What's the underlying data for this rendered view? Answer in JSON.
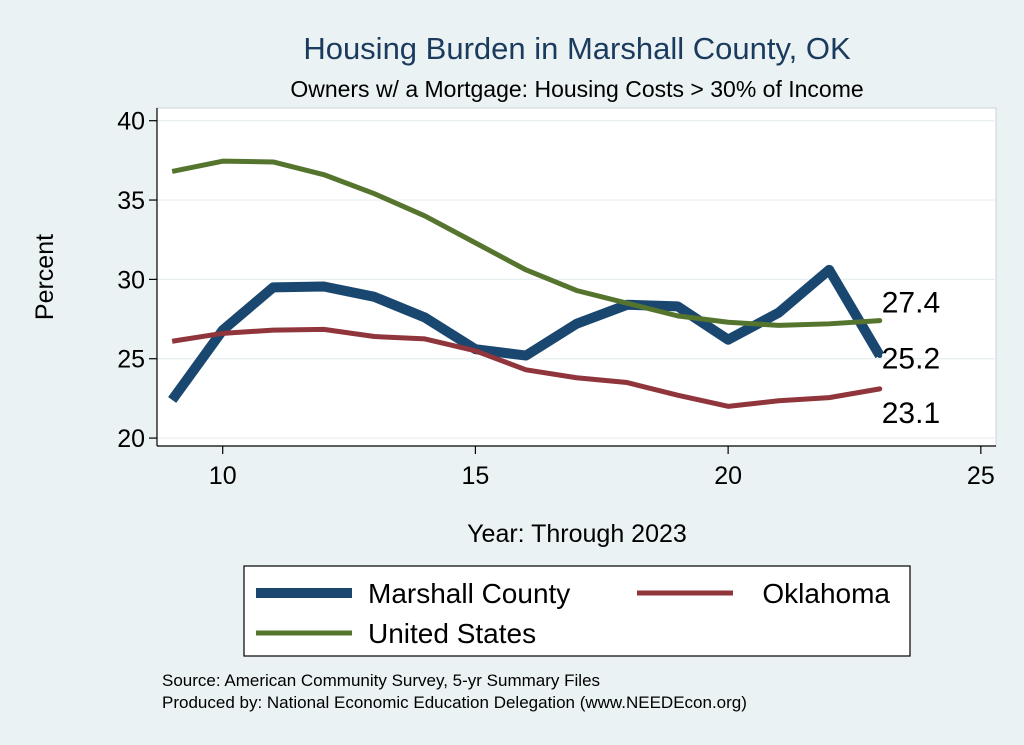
{
  "chart_data": {
    "type": "line",
    "title": "Housing Burden in Marshall County, OK",
    "subtitle": "Owners w/ a Mortgage: Housing Costs > 30% of Income",
    "xlabel": "Year: Through 2023",
    "ylabel": "Percent",
    "xlim": [
      8.7,
      25.3
    ],
    "ylim": [
      19.5,
      40.8
    ],
    "xticks": [
      10,
      15,
      20,
      25
    ],
    "yticks": [
      20,
      25,
      30,
      35,
      40
    ],
    "grid": true,
    "legend_position": "bottom",
    "series": [
      {
        "name": "Marshall County",
        "color": "#1a476f",
        "x": [
          9,
          10,
          11,
          12,
          13,
          14,
          15,
          16,
          17,
          18,
          19,
          20,
          21,
          22,
          23
        ],
        "values": [
          22.4,
          26.8,
          29.5,
          29.55,
          28.9,
          27.6,
          25.6,
          25.2,
          27.2,
          28.4,
          28.3,
          26.2,
          27.9,
          30.6,
          25.2
        ],
        "end_label": "25.2"
      },
      {
        "name": "Oklahoma",
        "color": "#90353b",
        "x": [
          9,
          10,
          11,
          12,
          13,
          14,
          15,
          16,
          17,
          18,
          19,
          20,
          21,
          22,
          23
        ],
        "values": [
          26.1,
          26.6,
          26.8,
          26.85,
          26.4,
          26.25,
          25.5,
          24.3,
          23.8,
          23.5,
          22.7,
          22.0,
          22.35,
          22.55,
          23.1
        ],
        "end_label": "23.1"
      },
      {
        "name": "United States",
        "color": "#55752f",
        "x": [
          9,
          10,
          11,
          12,
          13,
          14,
          15,
          16,
          17,
          18,
          19,
          20,
          21,
          22,
          23
        ],
        "values": [
          36.8,
          37.45,
          37.4,
          36.6,
          35.4,
          34.0,
          32.3,
          30.6,
          29.3,
          28.5,
          27.7,
          27.3,
          27.1,
          27.2,
          27.4
        ],
        "end_label": "27.4"
      }
    ],
    "legend": [
      "Marshall County",
      "Oklahoma",
      "United States"
    ],
    "notes": [
      "Source: American Community Survey, 5-yr Summary Files",
      "Produced by: National Economic Education Delegation (www.NEEDEcon.org)"
    ]
  }
}
